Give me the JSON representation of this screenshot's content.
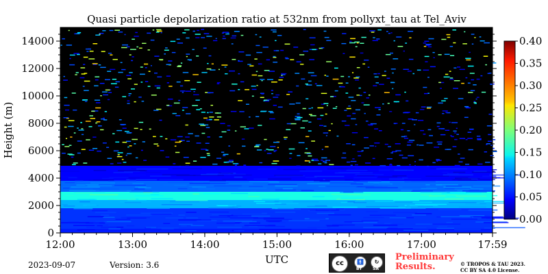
{
  "chart_data": {
    "type": "heatmap",
    "title": "Quasi particle depolarization ratio at 532nm from pollyxt_tau at Tel_Aviv",
    "xlabel": "UTC",
    "ylabel": "Height (m)",
    "x_ticks": [
      "12:00",
      "13:00",
      "14:00",
      "15:00",
      "16:00",
      "17:00",
      "17:59"
    ],
    "x_tick_values_hours": [
      12.0,
      13.0,
      14.0,
      15.0,
      16.0,
      17.0,
      17.983
    ],
    "xlim_hours": [
      12.0,
      17.983
    ],
    "y_ticks": [
      0,
      2000,
      4000,
      6000,
      8000,
      10000,
      12000,
      14000
    ],
    "ylim": [
      0,
      15000
    ],
    "colorbar": {
      "ticks": [
        "0.00",
        "0.05",
        "0.10",
        "0.15",
        "0.20",
        "0.25",
        "0.30",
        "0.35",
        "0.40"
      ],
      "range": [
        0.0,
        0.4
      ],
      "colormap": "jet"
    },
    "layers": [
      {
        "from_m": 0,
        "to_m": 300,
        "value": 0.06
      },
      {
        "from_m": 300,
        "to_m": 1800,
        "value": 0.07
      },
      {
        "from_m": 1800,
        "to_m": 2400,
        "value": 0.12
      },
      {
        "from_m": 2400,
        "to_m": 3000,
        "value": 0.16
      },
      {
        "from_m": 3000,
        "to_m": 3800,
        "value": 0.09
      },
      {
        "from_m": 3800,
        "to_m": 4900,
        "value": 0.05
      },
      {
        "from_m": 4900,
        "to_m": 15000,
        "value": null
      }
    ],
    "missing_color": "#000000"
  },
  "footer": {
    "date": "2023-09-07",
    "version": "Version: 3.6",
    "preliminary_line1": "Preliminary",
    "preliminary_line2": "Results.",
    "copyright_line1": "© TROPOS & TAU 2023.",
    "copyright_line2": "CC BY SA 4.0 License.",
    "license_badge": {
      "cc": "cc",
      "by": "BY",
      "sa": "SA"
    }
  }
}
